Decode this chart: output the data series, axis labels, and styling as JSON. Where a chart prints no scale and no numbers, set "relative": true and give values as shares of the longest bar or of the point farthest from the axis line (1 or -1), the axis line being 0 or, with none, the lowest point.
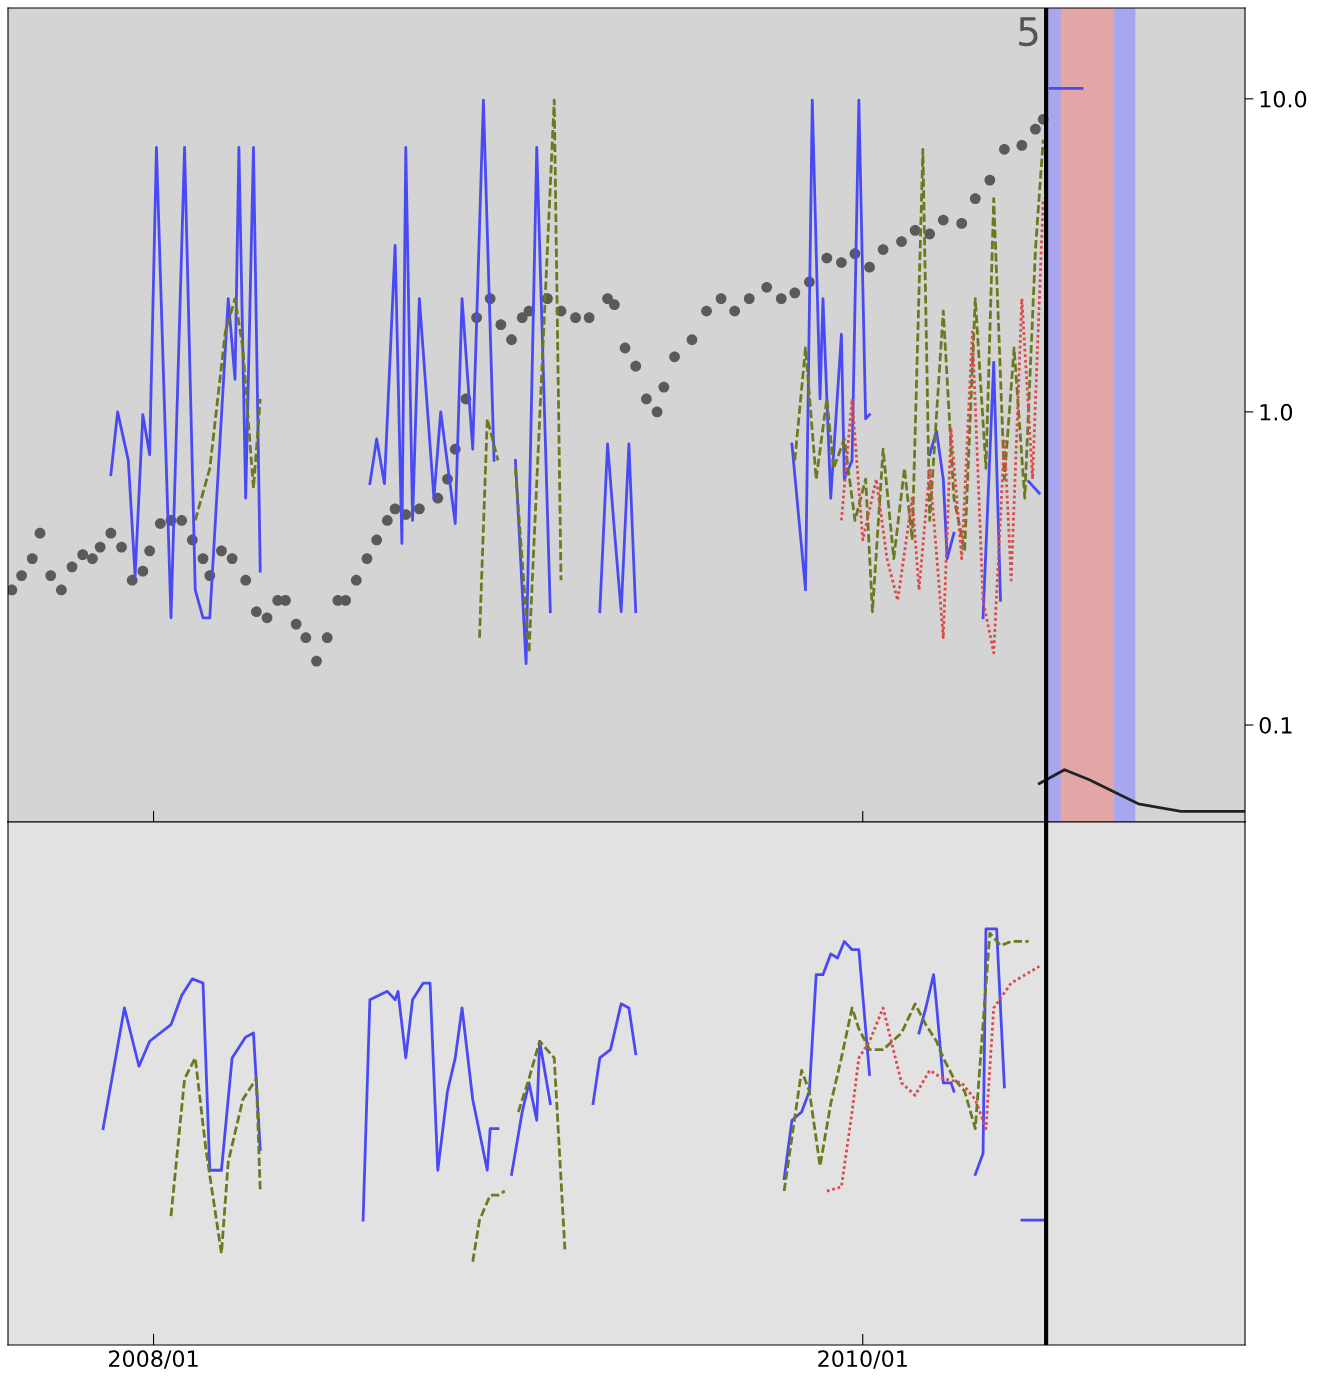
{
  "chart_data": [
    {
      "type": "line",
      "log": "y",
      "ylim": [
        0.049,
        19.5
      ],
      "yticks": [
        0.1,
        {
          "value": 1,
          "label": "1.0"
        },
        {
          "value": 10,
          "label": "10.0"
        }
      ],
      "xlim": [
        "2007-08-04",
        "2011-01-30"
      ],
      "xticks": [
        {
          "value": "2008-01-01",
          "label": null
        },
        {
          "value": "2010-01-01",
          "label": null
        }
      ],
      "tick_labels": "y",
      "annotations": [
        "5"
      ],
      "ref_lines": [
        {
          "axis": "x",
          "value": "2010-07-09",
          "color": "#000000"
        }
      ],
      "bands": [
        {
          "axis": "x",
          "from": "2010-07-09",
          "to": "2010-10-09",
          "color": "#a9a6f0"
        },
        {
          "axis": "x",
          "from": "2010-07-24",
          "to": "2010-09-17",
          "color": "#e3a6a6"
        }
      ],
      "series": [
        {
          "type": "scatter",
          "color": "#5a5a5a",
          "marker": "circle",
          "x": [
            "2007-08-08",
            "2007-08-18",
            "2007-08-29",
            "2007-09-06",
            "2007-09-17",
            "2007-09-28",
            "2007-10-09",
            "2007-10-20",
            "2007-10-30",
            "2007-11-07",
            "2007-11-18",
            "2007-11-29",
            "2007-12-10",
            "2007-12-21",
            "2007-12-28",
            "2008-01-08",
            "2008-01-19",
            "2008-01-30",
            "2008-02-10",
            "2008-02-21",
            "2008-02-28",
            "2008-03-11",
            "2008-03-22",
            "2008-04-05",
            "2008-04-16",
            "2008-04-27",
            "2008-05-08",
            "2008-05-16",
            "2008-05-27",
            "2008-06-06",
            "2008-06-17",
            "2008-06-28",
            "2008-07-09",
            "2008-07-17",
            "2008-07-28",
            "2008-08-08",
            "2008-08-18",
            "2008-08-29",
            "2008-09-06",
            "2008-09-17",
            "2008-10-01",
            "2008-10-20",
            "2008-10-30",
            "2008-11-07",
            "2008-11-18",
            "2008-11-29",
            "2008-12-13",
            "2008-12-24",
            "2009-01-04",
            "2009-01-15",
            "2009-01-22",
            "2009-02-10",
            "2009-02-24",
            "2009-03-11",
            "2009-03-25",
            "2009-04-13",
            "2009-04-20",
            "2009-05-01",
            "2009-05-12",
            "2009-05-23",
            "2009-06-03",
            "2009-06-10",
            "2009-06-21",
            "2009-07-09",
            "2009-07-24",
            "2009-08-08",
            "2009-08-22",
            "2009-09-06",
            "2009-09-24",
            "2009-10-09",
            "2009-10-23",
            "2009-11-07",
            "2009-11-25",
            "2009-12-10",
            "2009-12-24",
            "2010-01-08",
            "2010-01-22",
            "2010-02-10",
            "2010-02-24",
            "2010-03-11",
            "2010-03-25",
            "2010-04-13",
            "2010-04-27",
            "2010-05-12",
            "2010-05-27",
            "2010-06-14",
            "2010-06-28",
            "2010-07-06"
          ],
          "values": [
            0.27,
            0.3,
            0.34,
            0.41,
            0.3,
            0.27,
            0.32,
            0.35,
            0.34,
            0.37,
            0.41,
            0.37,
            0.29,
            0.31,
            0.36,
            0.44,
            0.45,
            0.45,
            0.39,
            0.34,
            0.3,
            0.36,
            0.34,
            0.29,
            0.23,
            0.22,
            0.25,
            0.25,
            0.21,
            0.19,
            0.16,
            0.19,
            0.25,
            0.25,
            0.29,
            0.34,
            0.39,
            0.45,
            0.49,
            0.47,
            0.49,
            0.53,
            0.61,
            0.76,
            1.1,
            2.0,
            2.3,
            1.9,
            1.7,
            2.0,
            2.1,
            2.3,
            2.1,
            2.0,
            2.0,
            2.3,
            2.2,
            1.6,
            1.4,
            1.1,
            1.0,
            1.2,
            1.5,
            1.7,
            2.1,
            2.3,
            2.1,
            2.3,
            2.5,
            2.3,
            2.4,
            2.6,
            3.1,
            3.0,
            3.2,
            2.9,
            3.3,
            3.5,
            3.8,
            3.7,
            4.1,
            4.0,
            4.8,
            5.5,
            6.9,
            7.1,
            8.0,
            8.6
          ]
        },
        {
          "color": "#4a4af5",
          "line_style": "solid",
          "x": [
            "2007-11-18",
            "2007-11-25",
            "2007-12-06",
            "2007-12-13",
            "2007-12-21",
            "2007-12-28",
            "2008-01-04",
            "2008-01-19",
            "2008-02-02",
            "2008-02-13",
            "2008-02-21",
            "2008-02-28",
            "2008-03-18",
            "2008-03-25",
            "2008-03-29",
            "2008-04-05",
            "2008-04-13",
            "2008-04-20",
            "2008-06-14",
            "2008-08-11",
            "2008-08-18",
            "2008-08-26",
            "2008-09-06",
            "2008-09-13",
            "2008-09-17",
            "2008-09-24",
            "2008-10-01",
            "2008-10-16",
            "2008-10-23",
            "2008-11-07",
            "2008-11-14",
            "2008-11-25",
            "2008-12-06",
            "2008-12-17",
            "2009-01-01",
            "2009-01-08",
            "2009-01-19",
            "2009-01-30",
            "2009-02-13",
            "2009-03-15",
            "2009-04-05",
            "2009-04-13",
            "2009-04-20",
            "2009-04-27",
            "2009-05-05",
            "2009-05-12",
            "2009-08-08",
            "2009-10-20",
            "2009-11-03",
            "2009-11-10",
            "2009-11-18",
            "2009-11-21",
            "2009-11-29",
            "2009-12-10",
            "2009-12-13",
            "2009-12-21",
            "2009-12-28",
            "2010-01-04",
            "2010-01-08",
            "2010-02-06",
            "2010-03-11",
            "2010-03-18",
            "2010-03-25",
            "2010-03-29",
            "2010-04-05",
            "2010-04-20",
            "2010-05-05",
            "2010-05-16",
            "2010-05-23",
            "2010-06-10",
            "2010-06-21",
            "2010-07-02",
            "2010-07-08",
            "2010-07-13",
            "2010-08-15"
          ],
          "values": [
            0.63,
            1.0,
            0.7,
            0.3,
            0.98,
            0.73,
            7.0,
            0.22,
            7.0,
            0.27,
            0.22,
            0.22,
            2.3,
            1.27,
            7.0,
            0.53,
            7.0,
            0.31,
            null,
            0.59,
            0.82,
            0.59,
            3.4,
            0.38,
            7.0,
            0.45,
            2.3,
            0.53,
            1.0,
            0.44,
            2.3,
            0.76,
            9.9,
            0.7,
            null,
            0.7,
            0.157,
            7.0,
            0.23,
            null,
            0.23,
            0.79,
            0.42,
            0.23,
            0.79,
            0.23,
            null,
            0.79,
            0.27,
            9.9,
            1.1,
            2.3,
            0.53,
            1.77,
            0.61,
            0.7,
            9.9,
            0.95,
            0.98,
            null,
            0.73,
            0.87,
            0.61,
            0.34,
            0.41,
            null,
            0.22,
            1.44,
            0.25,
            null,
            0.6,
            0.55,
            null,
            10.8,
            10.8
          ]
        },
        {
          "color": "#6b7a1f",
          "line_style": "dashed",
          "x": [
            "2008-02-13",
            "2008-02-28",
            "2008-03-15",
            "2008-03-25",
            "2008-04-02",
            "2008-04-13",
            "2008-04-20",
            "2008-08-08",
            "2008-12-02",
            "2008-12-10",
            "2008-12-21",
            "2008-12-30",
            "2009-01-08",
            "2009-01-22",
            "2009-02-02",
            "2009-02-17",
            "2009-02-24",
            "2009-07-02",
            "2009-10-23",
            "2009-11-03",
            "2009-11-14",
            "2009-11-25",
            "2009-12-02",
            "2009-12-13",
            "2009-12-24",
            "2010-01-04",
            "2010-01-11",
            "2010-01-22",
            "2010-02-02",
            "2010-02-13",
            "2010-02-21",
            "2010-03-04",
            "2010-03-11",
            "2010-03-25",
            "2010-04-05",
            "2010-04-16",
            "2010-04-27",
            "2010-05-08",
            "2010-05-16",
            "2010-05-27",
            "2010-06-06",
            "2010-06-17",
            "2010-06-28",
            "2010-07-06"
          ],
          "values": [
            0.45,
            0.66,
            1.8,
            2.3,
            1.6,
            0.57,
            1.1,
            null,
            0.19,
            0.95,
            0.7,
            null,
            0.66,
            0.17,
            0.95,
            9.9,
            0.29,
            null,
            0.7,
            1.6,
            0.61,
            1.1,
            0.66,
            0.82,
            0.45,
            0.61,
            0.23,
            0.76,
            0.34,
            0.66,
            0.39,
            6.9,
            0.45,
            2.1,
            0.53,
            0.36,
            2.3,
            0.66,
            4.8,
            0.61,
            1.6,
            0.53,
            3.3,
            7.4
          ]
        },
        {
          "color": "#dc4a4a",
          "line_style": "dotted",
          "x": [
            "2009-12-10",
            "2009-12-21",
            "2010-01-01",
            "2010-01-15",
            "2010-01-26",
            "2010-02-06",
            "2010-02-21",
            "2010-02-28",
            "2010-03-11",
            "2010-03-25",
            "2010-04-02",
            "2010-04-13",
            "2010-04-24",
            "2010-05-05",
            "2010-05-16",
            "2010-05-27",
            "2010-06-03",
            "2010-06-14",
            "2010-06-25",
            "2010-07-06"
          ],
          "values": [
            0.45,
            1.1,
            0.39,
            0.61,
            0.34,
            0.25,
            0.53,
            0.27,
            0.66,
            0.19,
            0.88,
            0.34,
            1.8,
            0.25,
            0.17,
            0.82,
            0.29,
            2.3,
            0.61,
            4.8
          ]
        },
        {
          "color": "#222222",
          "line_style": "solid",
          "x": [
            "2010-07-02",
            "2010-07-28",
            "2010-08-22",
            "2010-10-12",
            "2010-11-25",
            "2011-01-30"
          ],
          "values": [
            0.065,
            0.072,
            0.067,
            0.056,
            0.053,
            0.053
          ]
        }
      ]
    },
    {
      "type": "line",
      "relative": true,
      "xlim": [
        "2007-08-04",
        "2011-01-30"
      ],
      "xticks": [
        {
          "value": "2008-01-01",
          "label": "2008/01"
        },
        {
          "value": "2010-01-01",
          "label": "2010/01"
        }
      ],
      "tick_labels": "x",
      "ref_lines": [
        {
          "axis": "x",
          "value": "2010-07-09",
          "color": "#000000"
        }
      ],
      "series": [
        {
          "color": "#4a4af5",
          "line_style": "solid",
          "x": [
            "2007-11-10",
            "2007-12-02",
            "2007-12-17",
            "2007-12-28",
            "2008-01-19",
            "2008-01-30",
            "2008-02-10",
            "2008-02-21",
            "2008-02-28",
            "2008-03-11",
            "2008-03-22",
            "2008-04-05",
            "2008-04-13",
            "2008-04-20",
            "2008-06-14",
            "2008-08-04",
            "2008-08-11",
            "2008-08-29",
            "2008-09-06",
            "2008-09-09",
            "2008-09-17",
            "2008-09-24",
            "2008-10-05",
            "2008-10-12",
            "2008-10-20",
            "2008-10-30",
            "2008-11-07",
            "2008-11-14",
            "2008-11-25",
            "2008-12-10",
            "2008-12-13",
            "2008-12-21",
            "2008-12-28",
            "2009-01-04",
            "2009-01-15",
            "2009-01-22",
            "2009-01-30",
            "2009-02-02",
            "2009-02-13",
            "2009-03-07",
            "2009-03-29",
            "2009-04-05",
            "2009-04-16",
            "2009-04-27",
            "2009-05-05",
            "2009-05-12",
            "2009-08-08",
            "2009-10-12",
            "2009-10-20",
            "2009-10-30",
            "2009-11-07",
            "2009-11-14",
            "2009-11-21",
            "2009-11-29",
            "2009-12-06",
            "2009-12-13",
            "2009-12-21",
            "2009-12-28",
            "2010-01-08",
            "2010-02-06",
            "2010-02-28",
            "2010-03-07",
            "2010-03-15",
            "2010-03-18",
            "2010-03-25",
            "2010-04-02",
            "2010-04-05",
            "2010-04-16",
            "2010-04-27",
            "2010-05-05",
            "2010-05-08",
            "2010-05-19",
            "2010-05-27",
            "2010-06-06",
            "2010-06-14",
            "2010-07-09"
          ],
          "values": [
            0.52,
            0.81,
            0.67,
            0.73,
            0.77,
            0.84,
            0.88,
            0.87,
            0.42,
            0.42,
            0.69,
            0.74,
            0.75,
            0.47,
            null,
            0.3,
            0.83,
            0.85,
            0.83,
            0.85,
            0.69,
            0.83,
            0.87,
            0.87,
            0.42,
            0.61,
            0.69,
            0.81,
            0.59,
            0.42,
            0.52,
            0.52,
            null,
            0.41,
            0.56,
            0.63,
            0.54,
            0.73,
            0.58,
            null,
            0.58,
            0.69,
            0.71,
            0.82,
            0.81,
            0.7,
            null,
            0.4,
            0.54,
            0.56,
            0.61,
            0.89,
            0.89,
            0.94,
            0.93,
            0.97,
            0.95,
            0.95,
            0.65,
            null,
            0.75,
            0.81,
            0.89,
            0.82,
            0.63,
            0.63,
            0.61,
            null,
            0.41,
            0.46,
            1.0,
            1.0,
            0.62,
            null,
            0.3,
            0.3
          ]
        },
        {
          "color": "#6b7a1f",
          "line_style": "dashed",
          "x": [
            "2008-01-19",
            "2008-02-02",
            "2008-02-13",
            "2008-02-24",
            "2008-03-11",
            "2008-03-18",
            "2008-04-02",
            "2008-04-16",
            "2008-04-20",
            "2008-08-08",
            "2008-11-25",
            "2008-12-02",
            "2008-12-13",
            "2008-12-21",
            "2008-12-28",
            "2009-01-04",
            "2009-01-11",
            "2009-01-22",
            "2009-02-02",
            "2009-02-17",
            "2009-02-28",
            "2009-07-02",
            "2009-10-12",
            "2009-10-30",
            "2009-11-07",
            "2009-11-18",
            "2009-11-29",
            "2009-12-10",
            "2009-12-21",
            "2009-12-28",
            "2010-01-08",
            "2010-01-22",
            "2010-02-10",
            "2010-02-24",
            "2010-03-07",
            "2010-03-18",
            "2010-03-25",
            "2010-04-05",
            "2010-04-16",
            "2010-04-27",
            "2010-05-12",
            "2010-05-23",
            "2010-06-03",
            "2010-06-21"
          ],
          "values": [
            0.31,
            0.64,
            0.69,
            0.47,
            0.22,
            0.44,
            0.59,
            0.64,
            0.37,
            null,
            0.2,
            0.3,
            0.36,
            0.36,
            0.37,
            null,
            0.56,
            0.64,
            0.73,
            0.69,
            0.23,
            null,
            0.37,
            0.66,
            0.61,
            0.43,
            0.58,
            0.69,
            0.81,
            0.76,
            0.71,
            0.71,
            0.75,
            0.82,
            0.77,
            0.73,
            0.69,
            0.64,
            0.61,
            0.52,
            0.99,
            0.96,
            0.97,
            0.97
          ]
        },
        {
          "color": "#dc4a4a",
          "line_style": "dotted",
          "x": [
            "2009-11-25",
            "2009-12-10",
            "2009-12-21",
            "2009-12-28",
            "2010-01-08",
            "2010-01-22",
            "2010-02-10",
            "2010-02-24",
            "2010-03-11",
            "2010-03-25",
            "2010-04-13",
            "2010-04-27",
            "2010-05-08",
            "2010-05-16",
            "2010-06-03",
            "2010-07-02"
          ],
          "values": [
            0.37,
            0.38,
            0.56,
            0.69,
            0.73,
            0.81,
            0.63,
            0.6,
            0.66,
            0.64,
            0.63,
            0.59,
            0.52,
            0.81,
            0.87,
            0.91
          ]
        }
      ]
    }
  ]
}
